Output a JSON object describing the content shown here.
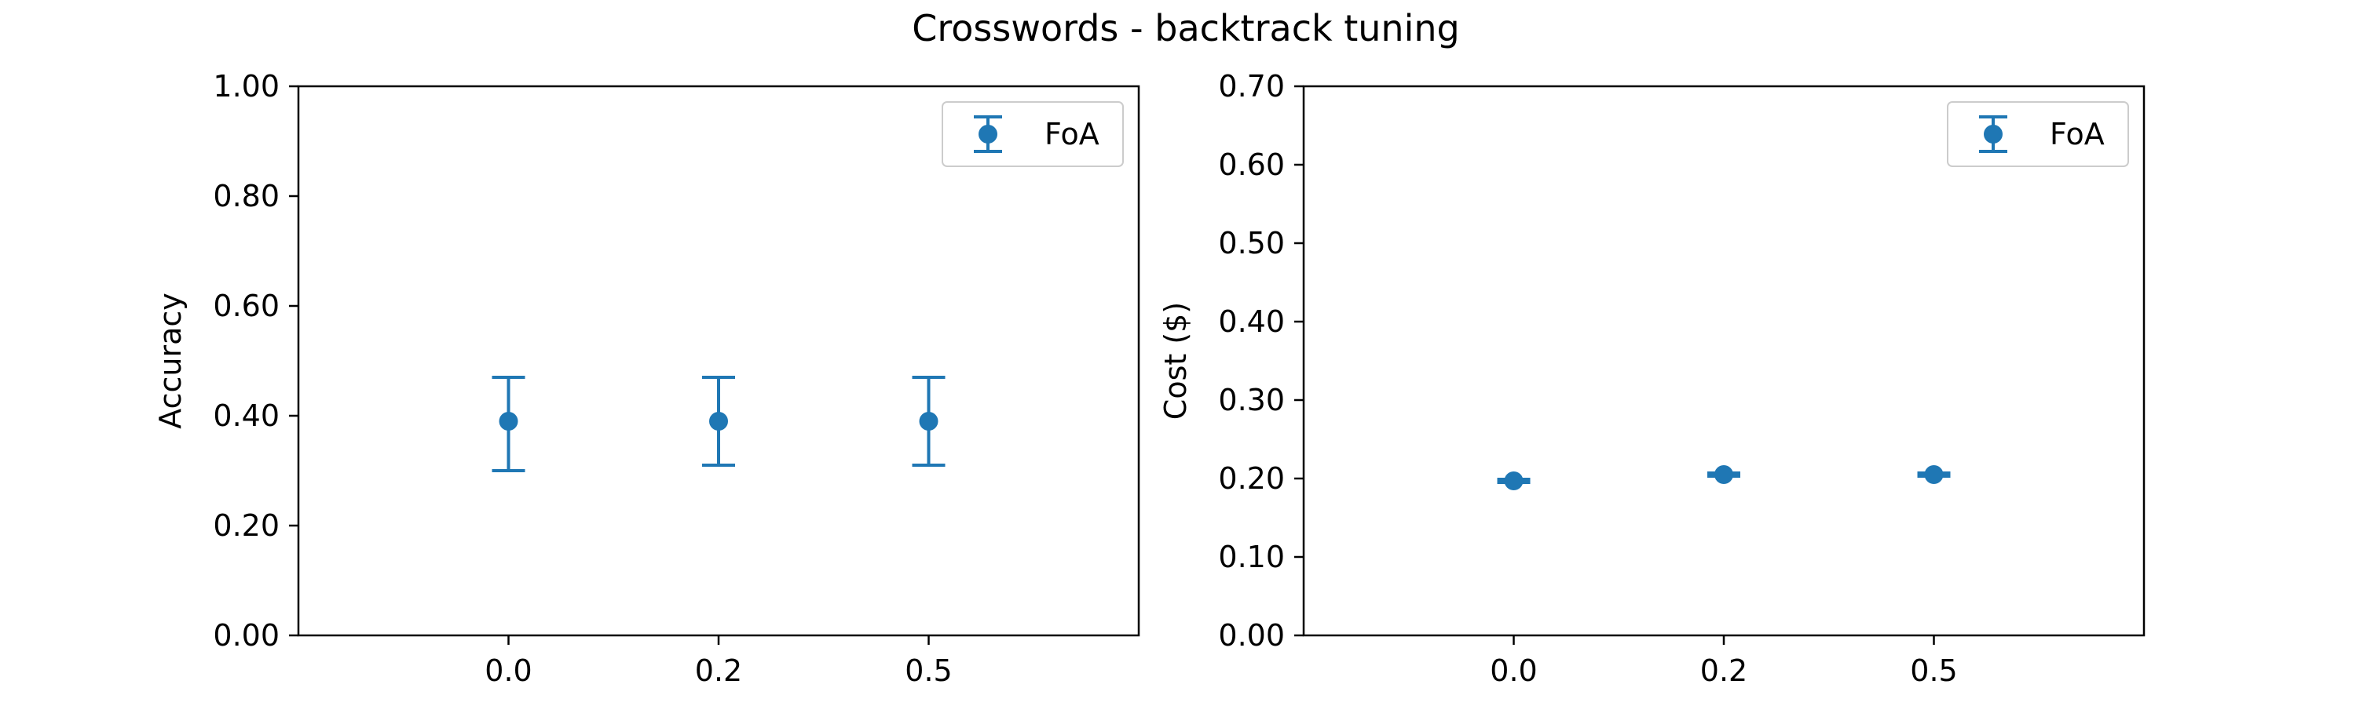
{
  "title": "Crosswords - backtrack tuning",
  "colors": {
    "series": "#1f77b4",
    "axes": "#000000",
    "legend_border": "#cccccc",
    "background": "#ffffff"
  },
  "chart_data": [
    {
      "type": "scatter",
      "error_bars": true,
      "categories": [
        "0.0",
        "0.2",
        "0.5"
      ],
      "xlabel": "",
      "ylabel": "Accuracy",
      "ylim": [
        0,
        1.0
      ],
      "yticks": [
        "0.00",
        "0.20",
        "0.40",
        "0.60",
        "0.80",
        "1.00"
      ],
      "grid": false,
      "legend": "top-right",
      "series": [
        {
          "name": "FoA",
          "values": [
            0.39,
            0.39,
            0.39
          ],
          "err_low": [
            0.3,
            0.31,
            0.31
          ],
          "err_high": [
            0.47,
            0.47,
            0.47
          ]
        }
      ]
    },
    {
      "type": "scatter",
      "error_bars": true,
      "categories": [
        "0.0",
        "0.2",
        "0.5"
      ],
      "xlabel": "",
      "ylabel": "Cost ($)",
      "ylim": [
        0,
        0.7
      ],
      "yticks": [
        "0.00",
        "0.10",
        "0.20",
        "0.30",
        "0.40",
        "0.50",
        "0.60",
        "0.70"
      ],
      "grid": false,
      "legend": "top-right",
      "series": [
        {
          "name": "FoA",
          "values": [
            0.197,
            0.205,
            0.205
          ],
          "err_low": [
            0.195,
            0.203,
            0.203
          ],
          "err_high": [
            0.199,
            0.207,
            0.207
          ]
        }
      ]
    }
  ]
}
